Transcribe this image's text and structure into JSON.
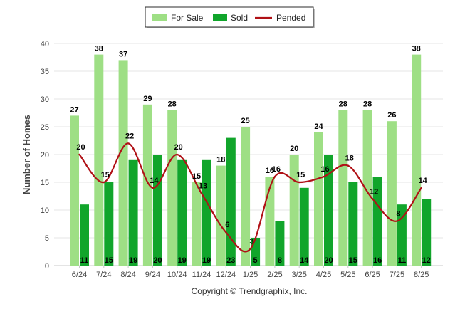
{
  "chart_data": {
    "type": "bar",
    "title": "",
    "xlabel": "",
    "ylabel": "Number of Homes",
    "ylim": [
      0,
      40
    ],
    "yticks": [
      0,
      5,
      10,
      15,
      20,
      25,
      30,
      35,
      40
    ],
    "grid": true,
    "legend_position": "top-center",
    "categories": [
      "6/24",
      "7/24",
      "8/24",
      "9/24",
      "10/24",
      "11/24",
      "12/24",
      "1/25",
      "2/25",
      "3/25",
      "4/25",
      "5/25",
      "6/25",
      "7/25",
      "8/25"
    ],
    "series": [
      {
        "name": "For Sale",
        "kind": "bar",
        "color": "#9edf85",
        "values": [
          27,
          38,
          37,
          29,
          28,
          15,
          18,
          25,
          16,
          20,
          24,
          28,
          28,
          26,
          38
        ]
      },
      {
        "name": "Sold",
        "kind": "bar",
        "color": "#11a52b",
        "values": [
          11,
          15,
          19,
          20,
          19,
          19,
          23,
          5,
          8,
          14,
          20,
          15,
          16,
          11,
          12
        ]
      },
      {
        "name": "Pended",
        "kind": "line",
        "color": "#b01116",
        "values": [
          20,
          15,
          22,
          14,
          20,
          13,
          6,
          3,
          16,
          15,
          16,
          18,
          12,
          8,
          14
        ]
      }
    ]
  },
  "footer": {
    "copyright": "Copyright © Trendgraphix, Inc."
  }
}
